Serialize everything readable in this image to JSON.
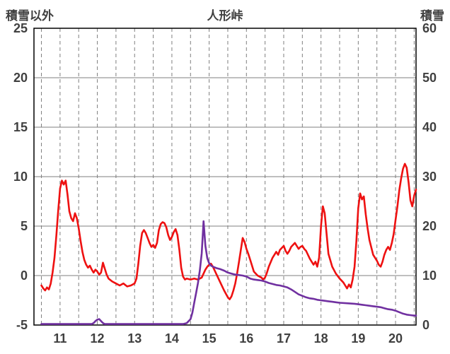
{
  "header": {
    "left_axis_label": "積雪以外",
    "title": "人形峠",
    "right_axis_label": "積雪"
  },
  "colors": {
    "temperature_line": "#ee1111",
    "snow_line": "#7030a0",
    "grid": "#7f7f7f",
    "border": "#000000",
    "label": "#404040"
  },
  "chart_data": {
    "type": "line",
    "title": "人形峠",
    "grid": true,
    "legend": "none",
    "left_axis": {
      "label": "積雪以外",
      "min": -5,
      "max": 25,
      "tick_step": 5,
      "ticks": [
        25,
        20,
        15,
        10,
        5,
        0,
        -5
      ]
    },
    "right_axis": {
      "label": "積雪",
      "min": 0,
      "max": 60,
      "tick_step": 10,
      "ticks": [
        60,
        50,
        40,
        30,
        20,
        10,
        0
      ]
    },
    "x_axis": {
      "min": 10.3,
      "max": 20.55,
      "ticks": [
        11,
        12,
        13,
        14,
        15,
        16,
        17,
        18,
        19,
        20
      ],
      "gridline_start": 10.5,
      "gridline_step": 0.5
    },
    "series": [
      {
        "name": "積雪以外",
        "axis": "left",
        "color": "#ee1111",
        "points": [
          [
            10.5,
            -1.0
          ],
          [
            10.55,
            -1.3
          ],
          [
            10.6,
            -1.5
          ],
          [
            10.65,
            -1.2
          ],
          [
            10.7,
            -1.4
          ],
          [
            10.75,
            -0.8
          ],
          [
            10.8,
            0.3
          ],
          [
            10.85,
            1.8
          ],
          [
            10.9,
            4.0
          ],
          [
            10.95,
            6.5
          ],
          [
            11.0,
            8.8
          ],
          [
            11.05,
            9.6
          ],
          [
            11.1,
            9.2
          ],
          [
            11.15,
            9.6
          ],
          [
            11.2,
            8.2
          ],
          [
            11.25,
            6.5
          ],
          [
            11.3,
            5.8
          ],
          [
            11.35,
            5.5
          ],
          [
            11.4,
            6.3
          ],
          [
            11.45,
            5.8
          ],
          [
            11.5,
            4.8
          ],
          [
            11.55,
            3.5
          ],
          [
            11.6,
            2.4
          ],
          [
            11.65,
            1.6
          ],
          [
            11.7,
            1.1
          ],
          [
            11.75,
            0.8
          ],
          [
            11.8,
            1.0
          ],
          [
            11.85,
            0.6
          ],
          [
            11.9,
            0.3
          ],
          [
            11.95,
            0.6
          ],
          [
            12.0,
            0.4
          ],
          [
            12.05,
            0.1
          ],
          [
            12.1,
            0.3
          ],
          [
            12.15,
            1.3
          ],
          [
            12.2,
            0.7
          ],
          [
            12.25,
            0.1
          ],
          [
            12.3,
            -0.3
          ],
          [
            12.4,
            -0.6
          ],
          [
            12.5,
            -0.8
          ],
          [
            12.6,
            -1.0
          ],
          [
            12.7,
            -0.8
          ],
          [
            12.8,
            -1.1
          ],
          [
            12.9,
            -1.0
          ],
          [
            13.0,
            -0.8
          ],
          [
            13.05,
            -0.3
          ],
          [
            13.1,
            1.2
          ],
          [
            13.15,
            3.0
          ],
          [
            13.2,
            4.3
          ],
          [
            13.25,
            4.6
          ],
          [
            13.3,
            4.3
          ],
          [
            13.35,
            3.8
          ],
          [
            13.4,
            3.3
          ],
          [
            13.45,
            2.9
          ],
          [
            13.5,
            3.1
          ],
          [
            13.55,
            2.8
          ],
          [
            13.6,
            3.3
          ],
          [
            13.65,
            4.6
          ],
          [
            13.7,
            5.2
          ],
          [
            13.75,
            5.4
          ],
          [
            13.8,
            5.3
          ],
          [
            13.85,
            4.9
          ],
          [
            13.9,
            4.1
          ],
          [
            13.95,
            3.6
          ],
          [
            14.0,
            3.9
          ],
          [
            14.05,
            4.4
          ],
          [
            14.1,
            4.7
          ],
          [
            14.15,
            4.1
          ],
          [
            14.2,
            2.6
          ],
          [
            14.25,
            0.8
          ],
          [
            14.3,
            -0.1
          ],
          [
            14.35,
            -0.4
          ],
          [
            14.4,
            -0.3
          ],
          [
            14.5,
            -0.4
          ],
          [
            14.6,
            -0.3
          ],
          [
            14.7,
            -0.4
          ],
          [
            14.8,
            -0.2
          ],
          [
            14.85,
            0.2
          ],
          [
            14.9,
            0.6
          ],
          [
            14.95,
            0.9
          ],
          [
            15.0,
            1.1
          ],
          [
            15.05,
            1.2
          ],
          [
            15.1,
            0.9
          ],
          [
            15.15,
            0.5
          ],
          [
            15.2,
            0.1
          ],
          [
            15.3,
            -0.7
          ],
          [
            15.4,
            -1.5
          ],
          [
            15.5,
            -2.2
          ],
          [
            15.55,
            -2.4
          ],
          [
            15.6,
            -2.1
          ],
          [
            15.65,
            -1.5
          ],
          [
            15.7,
            -0.8
          ],
          [
            15.75,
            0.2
          ],
          [
            15.8,
            1.4
          ],
          [
            15.85,
            2.6
          ],
          [
            15.9,
            3.8
          ],
          [
            15.95,
            3.4
          ],
          [
            16.0,
            2.7
          ],
          [
            16.05,
            2.2
          ],
          [
            16.1,
            1.6
          ],
          [
            16.15,
            1.0
          ],
          [
            16.2,
            0.4
          ],
          [
            16.3,
            0.0
          ],
          [
            16.4,
            -0.2
          ],
          [
            16.45,
            -0.4
          ],
          [
            16.5,
            -0.2
          ],
          [
            16.55,
            0.3
          ],
          [
            16.6,
            0.9
          ],
          [
            16.7,
            1.8
          ],
          [
            16.8,
            2.4
          ],
          [
            16.85,
            2.1
          ],
          [
            16.9,
            2.6
          ],
          [
            17.0,
            3.0
          ],
          [
            17.05,
            2.5
          ],
          [
            17.1,
            2.2
          ],
          [
            17.15,
            2.5
          ],
          [
            17.2,
            2.9
          ],
          [
            17.3,
            3.3
          ],
          [
            17.35,
            3.0
          ],
          [
            17.4,
            2.7
          ],
          [
            17.45,
            2.9
          ],
          [
            17.5,
            3.0
          ],
          [
            17.55,
            2.7
          ],
          [
            17.6,
            2.5
          ],
          [
            17.7,
            1.7
          ],
          [
            17.8,
            1.1
          ],
          [
            17.85,
            1.4
          ],
          [
            17.9,
            0.9
          ],
          [
            17.95,
            1.8
          ],
          [
            18.0,
            5.0
          ],
          [
            18.05,
            7.0
          ],
          [
            18.1,
            6.3
          ],
          [
            18.15,
            4.2
          ],
          [
            18.2,
            2.2
          ],
          [
            18.3,
            0.9
          ],
          [
            18.4,
            0.2
          ],
          [
            18.5,
            -0.3
          ],
          [
            18.6,
            -0.7
          ],
          [
            18.65,
            -1.0
          ],
          [
            18.7,
            -1.3
          ],
          [
            18.75,
            -0.9
          ],
          [
            18.8,
            -1.2
          ],
          [
            18.85,
            -0.4
          ],
          [
            18.9,
            0.9
          ],
          [
            18.95,
            3.5
          ],
          [
            19.0,
            6.8
          ],
          [
            19.05,
            8.3
          ],
          [
            19.1,
            7.7
          ],
          [
            19.15,
            8.0
          ],
          [
            19.2,
            6.2
          ],
          [
            19.25,
            4.8
          ],
          [
            19.3,
            3.6
          ],
          [
            19.4,
            2.1
          ],
          [
            19.5,
            1.5
          ],
          [
            19.55,
            1.1
          ],
          [
            19.6,
            0.9
          ],
          [
            19.65,
            1.4
          ],
          [
            19.7,
            2.1
          ],
          [
            19.75,
            2.6
          ],
          [
            19.8,
            2.9
          ],
          [
            19.85,
            2.6
          ],
          [
            19.9,
            3.3
          ],
          [
            19.95,
            4.2
          ],
          [
            20.0,
            5.6
          ],
          [
            20.05,
            7.0
          ],
          [
            20.1,
            8.6
          ],
          [
            20.15,
            9.8
          ],
          [
            20.2,
            10.8
          ],
          [
            20.25,
            11.3
          ],
          [
            20.3,
            10.9
          ],
          [
            20.35,
            9.4
          ],
          [
            20.4,
            7.6
          ],
          [
            20.45,
            7.0
          ],
          [
            20.5,
            8.1
          ],
          [
            20.55,
            8.7
          ]
        ]
      },
      {
        "name": "積雪",
        "axis": "right",
        "color": "#7030a0",
        "points": [
          [
            10.5,
            0.2
          ],
          [
            11.0,
            0.2
          ],
          [
            11.5,
            0.2
          ],
          [
            11.85,
            0.2
          ],
          [
            11.9,
            0.4
          ],
          [
            11.95,
            0.8
          ],
          [
            12.0,
            1.1
          ],
          [
            12.05,
            1.2
          ],
          [
            12.1,
            0.8
          ],
          [
            12.15,
            0.4
          ],
          [
            12.2,
            0.2
          ],
          [
            12.5,
            0.2
          ],
          [
            13.0,
            0.2
          ],
          [
            13.5,
            0.2
          ],
          [
            14.0,
            0.2
          ],
          [
            14.3,
            0.2
          ],
          [
            14.4,
            0.4
          ],
          [
            14.5,
            1.2
          ],
          [
            14.55,
            2.5
          ],
          [
            14.6,
            4.5
          ],
          [
            14.65,
            6.5
          ],
          [
            14.7,
            8.5
          ],
          [
            14.75,
            11.0
          ],
          [
            14.8,
            14.5
          ],
          [
            14.85,
            21.0
          ],
          [
            14.9,
            16.0
          ],
          [
            14.95,
            13.5
          ],
          [
            15.0,
            12.5
          ],
          [
            15.05,
            12.0
          ],
          [
            15.1,
            11.8
          ],
          [
            15.2,
            11.5
          ],
          [
            15.3,
            11.3
          ],
          [
            15.4,
            11.0
          ],
          [
            15.5,
            10.6
          ],
          [
            15.6,
            10.4
          ],
          [
            15.7,
            10.2
          ],
          [
            15.8,
            10.1
          ],
          [
            15.9,
            10.0
          ],
          [
            16.0,
            9.8
          ],
          [
            16.1,
            9.4
          ],
          [
            16.2,
            9.2
          ],
          [
            16.3,
            9.1
          ],
          [
            16.4,
            9.0
          ],
          [
            16.5,
            8.8
          ],
          [
            16.6,
            8.5
          ],
          [
            16.7,
            8.3
          ],
          [
            16.8,
            8.1
          ],
          [
            16.9,
            8.0
          ],
          [
            17.0,
            7.8
          ],
          [
            17.1,
            7.6
          ],
          [
            17.2,
            7.2
          ],
          [
            17.3,
            6.7
          ],
          [
            17.4,
            6.2
          ],
          [
            17.5,
            5.9
          ],
          [
            17.6,
            5.6
          ],
          [
            17.7,
            5.4
          ],
          [
            17.8,
            5.3
          ],
          [
            17.9,
            5.1
          ],
          [
            18.0,
            5.0
          ],
          [
            18.1,
            4.9
          ],
          [
            18.2,
            4.8
          ],
          [
            18.3,
            4.7
          ],
          [
            18.4,
            4.6
          ],
          [
            18.5,
            4.5
          ],
          [
            18.7,
            4.4
          ],
          [
            18.9,
            4.3
          ],
          [
            19.0,
            4.2
          ],
          [
            19.1,
            4.1
          ],
          [
            19.2,
            4.0
          ],
          [
            19.3,
            3.9
          ],
          [
            19.4,
            3.8
          ],
          [
            19.5,
            3.7
          ],
          [
            19.6,
            3.6
          ],
          [
            19.7,
            3.4
          ],
          [
            19.8,
            3.2
          ],
          [
            19.9,
            3.1
          ],
          [
            20.0,
            2.9
          ],
          [
            20.1,
            2.6
          ],
          [
            20.2,
            2.3
          ],
          [
            20.3,
            2.1
          ],
          [
            20.4,
            2.0
          ],
          [
            20.5,
            1.9
          ],
          [
            20.55,
            1.9
          ]
        ]
      }
    ]
  }
}
